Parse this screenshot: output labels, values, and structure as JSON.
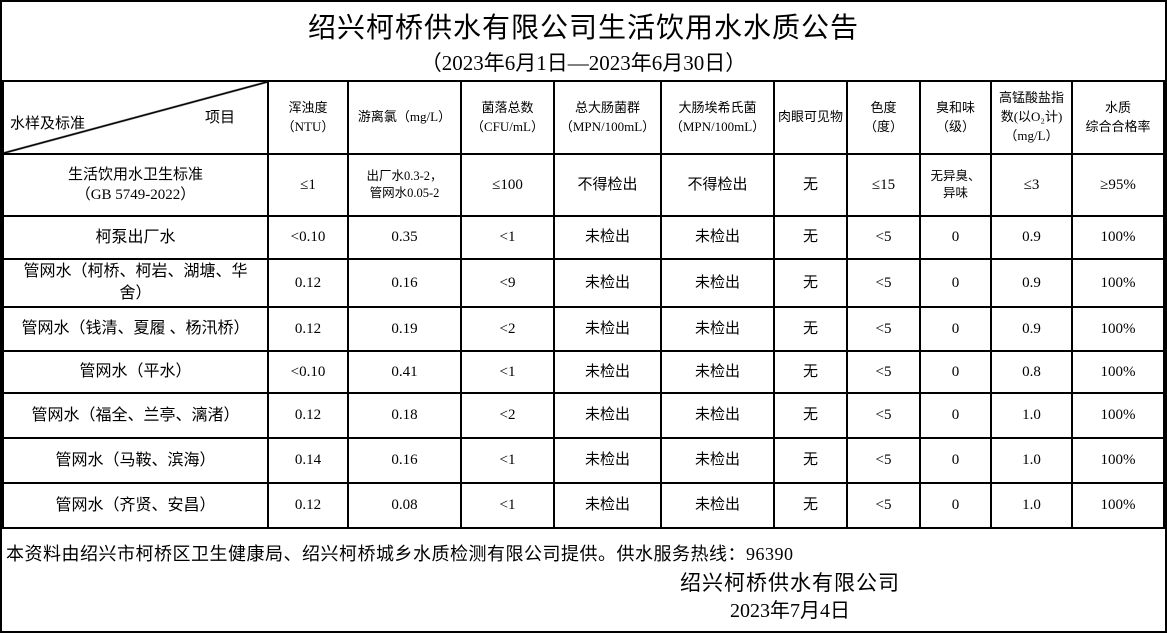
{
  "page": {
    "title": "绍兴柯桥供水有限公司生活饮用水水质公告",
    "subtitle": "（2023年6月1日—2023年6月30日）"
  },
  "table": {
    "corner": {
      "sample_axis": "水样及标准",
      "item_axis": "项目"
    },
    "columns": [
      "浑浊度\n（NTU）",
      "游离氯（mg/L）",
      "菌落总数\n（CFU/mL）",
      "总大肠菌群\n（MPN/100mL）",
      "大肠埃希氏菌\n（MPN/100mL）",
      "肉眼可见物",
      "色度\n（度）",
      "臭和味\n（级）",
      "高锰酸盐指\n数(以O₂计)\n（mg/L）",
      "水质\n综合合格率"
    ],
    "rows": [
      {
        "label": "生活饮用水卫生标准\n（GB 5749-2022）",
        "values": [
          "≤1",
          "出厂水0.3-2，\n管网水0.05-2",
          "≤100",
          "不得检出",
          "不得检出",
          "无",
          "≤15",
          "无异臭、\n异味",
          "≤3",
          "≥95%"
        ]
      },
      {
        "label": "柯泵出厂水",
        "values": [
          "<0.10",
          "0.35",
          "<1",
          "未检出",
          "未检出",
          "无",
          "<5",
          "0",
          "0.9",
          "100%"
        ]
      },
      {
        "label": "管网水（柯桥、柯岩、湖塘、华\n舍）",
        "values": [
          "0.12",
          "0.16",
          "<9",
          "未检出",
          "未检出",
          "无",
          "<5",
          "0",
          "0.9",
          "100%"
        ]
      },
      {
        "label": "管网水（钱清、夏履 、杨汛桥）",
        "values": [
          "0.12",
          "0.19",
          "<2",
          "未检出",
          "未检出",
          "无",
          "<5",
          "0",
          "0.9",
          "100%"
        ]
      },
      {
        "label": "管网水（平水）",
        "values": [
          "<0.10",
          "0.41",
          "<1",
          "未检出",
          "未检出",
          "无",
          "<5",
          "0",
          "0.8",
          "100%"
        ]
      },
      {
        "label": "管网水（福全、兰亭、漓渚）",
        "values": [
          "0.12",
          "0.18",
          "<2",
          "未检出",
          "未检出",
          "无",
          "<5",
          "0",
          "1.0",
          "100%"
        ]
      },
      {
        "label": "管网水（马鞍、滨海）",
        "values": [
          "0.14",
          "0.16",
          "<1",
          "未检出",
          "未检出",
          "无",
          "<5",
          "0",
          "1.0",
          "100%"
        ]
      },
      {
        "label": "管网水（齐贤、安昌）",
        "values": [
          "0.12",
          "0.08",
          "<1",
          "未检出",
          "未检出",
          "无",
          "<5",
          "0",
          "1.0",
          "100%"
        ]
      }
    ]
  },
  "footer": {
    "note": "本资料由绍兴市柯桥区卫生健康局、绍兴柯桥城乡水质检测有限公司提供。供水服务热线：96390",
    "company": "绍兴柯桥供水有限公司",
    "date": "2023年7月4日"
  }
}
